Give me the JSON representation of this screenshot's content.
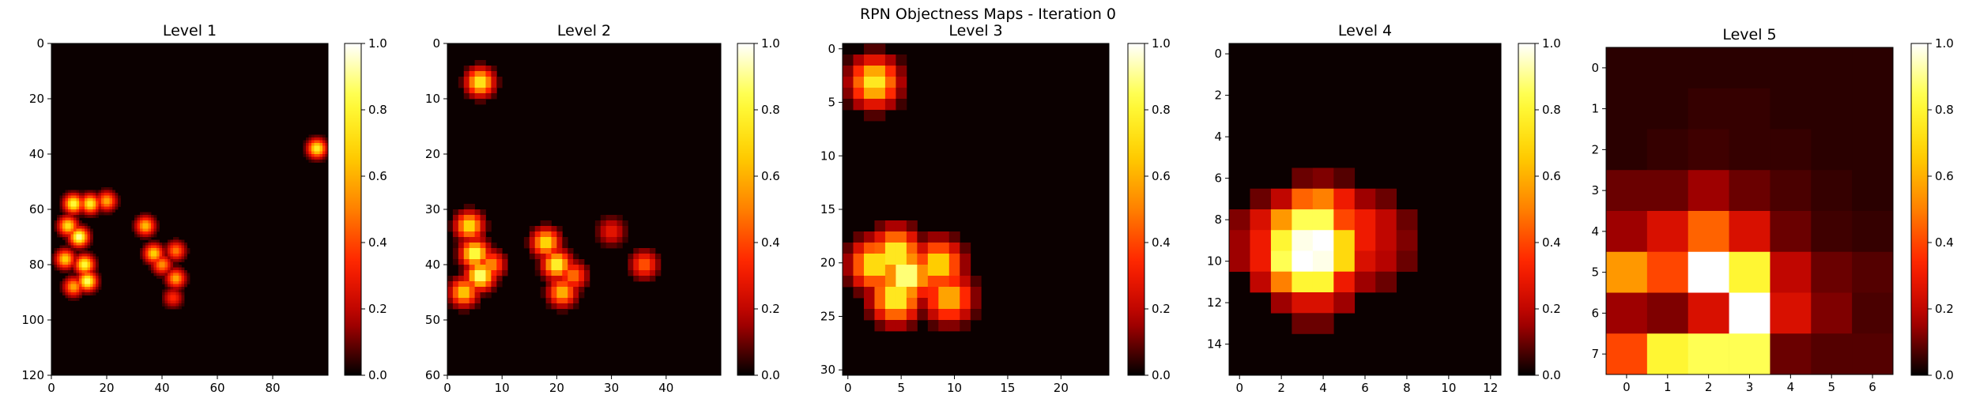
{
  "figure": {
    "suptitle": "RPN Objectness Maps - Iteration 0",
    "colormap": [
      "#000000",
      "#b00000",
      "#ff2000",
      "#ff8000",
      "#ffd000",
      "#ffff40",
      "#ffffff"
    ],
    "background_value_color": "#0b0000"
  },
  "chart_data": [
    {
      "type": "heatmap",
      "title": "Level 1",
      "grid_shape": [
        120,
        100
      ],
      "xticks": [
        0,
        20,
        40,
        60,
        80
      ],
      "yticks": [
        0,
        20,
        40,
        60,
        80,
        100,
        120
      ],
      "colorbar_ticks": [
        0.0,
        0.2,
        0.4,
        0.6,
        0.8,
        1.0
      ],
      "colorbar_tick_labels": [
        "0.0",
        "0.2",
        "0.4",
        "0.6",
        "0.8",
        "1.0"
      ],
      "vmin": 0.0,
      "vmax": 1.0,
      "hotspots": [
        {
          "x": 8,
          "y": 58,
          "value": 0.85
        },
        {
          "x": 14,
          "y": 58,
          "value": 0.8
        },
        {
          "x": 20,
          "y": 57,
          "value": 0.6
        },
        {
          "x": 6,
          "y": 66,
          "value": 0.75
        },
        {
          "x": 10,
          "y": 70,
          "value": 0.95
        },
        {
          "x": 5,
          "y": 78,
          "value": 0.7
        },
        {
          "x": 12,
          "y": 80,
          "value": 0.85
        },
        {
          "x": 13,
          "y": 86,
          "value": 0.9
        },
        {
          "x": 8,
          "y": 88,
          "value": 0.6
        },
        {
          "x": 34,
          "y": 66,
          "value": 0.65
        },
        {
          "x": 37,
          "y": 76,
          "value": 0.7
        },
        {
          "x": 40,
          "y": 80,
          "value": 0.55
        },
        {
          "x": 45,
          "y": 75,
          "value": 0.5
        },
        {
          "x": 45,
          "y": 85,
          "value": 0.6
        },
        {
          "x": 44,
          "y": 92,
          "value": 0.35
        },
        {
          "x": 96,
          "y": 38,
          "value": 0.8
        }
      ]
    },
    {
      "type": "heatmap",
      "title": "Level 2",
      "grid_shape": [
        60,
        50
      ],
      "xticks": [
        0,
        10,
        20,
        30,
        40
      ],
      "yticks": [
        0,
        10,
        20,
        30,
        40,
        50,
        60
      ],
      "colorbar_ticks": [
        0.0,
        0.2,
        0.4,
        0.6,
        0.8,
        1.0
      ],
      "colorbar_tick_labels": [
        "0.0",
        "0.2",
        "0.4",
        "0.6",
        "0.8",
        "1.0"
      ],
      "vmin": 0.0,
      "vmax": 1.0,
      "hotspots": [
        {
          "x": 6,
          "y": 7,
          "value": 0.8
        },
        {
          "x": 4,
          "y": 33,
          "value": 0.75
        },
        {
          "x": 5,
          "y": 38,
          "value": 0.9
        },
        {
          "x": 6,
          "y": 42,
          "value": 0.95
        },
        {
          "x": 3,
          "y": 45,
          "value": 0.7
        },
        {
          "x": 8,
          "y": 40,
          "value": 0.55
        },
        {
          "x": 18,
          "y": 36,
          "value": 0.75
        },
        {
          "x": 20,
          "y": 40,
          "value": 0.85
        },
        {
          "x": 21,
          "y": 45,
          "value": 0.65
        },
        {
          "x": 23,
          "y": 42,
          "value": 0.5
        },
        {
          "x": 30,
          "y": 34,
          "value": 0.3
        },
        {
          "x": 36,
          "y": 40,
          "value": 0.45
        }
      ]
    },
    {
      "type": "heatmap",
      "title": "Level 3",
      "grid_shape": [
        30,
        25
      ],
      "xticks": [
        0,
        5,
        10,
        15,
        20
      ],
      "yticks": [
        0,
        5,
        10,
        15,
        20,
        25,
        30
      ],
      "colorbar_ticks": [
        0.0,
        0.2,
        0.4,
        0.6,
        0.8,
        1.0
      ],
      "colorbar_tick_labels": [
        "0.0",
        "0.2",
        "0.4",
        "0.6",
        "0.8",
        "1.0"
      ],
      "vmin": 0.0,
      "vmax": 1.0,
      "hotspots": [
        {
          "x": 3,
          "y": 3.5,
          "value": 0.8
        },
        {
          "x": 5,
          "y": 19,
          "value": 0.85
        },
        {
          "x": 6,
          "y": 21,
          "value": 1.0
        },
        {
          "x": 5,
          "y": 23,
          "value": 0.85
        },
        {
          "x": 3,
          "y": 20,
          "value": 0.8
        },
        {
          "x": 9,
          "y": 20,
          "value": 0.75
        },
        {
          "x": 10,
          "y": 23,
          "value": 0.65
        }
      ]
    },
    {
      "type": "heatmap",
      "title": "Level 4",
      "grid_shape": [
        15,
        12
      ],
      "xticks": [
        0,
        2,
        4,
        6,
        8,
        10,
        12
      ],
      "yticks": [
        0,
        2,
        4,
        6,
        8,
        10,
        12,
        14
      ],
      "colorbar_ticks": [
        0.0,
        0.2,
        0.4,
        0.6,
        0.8,
        1.0
      ],
      "colorbar_tick_labels": [
        "0.0",
        "0.2",
        "0.4",
        "0.6",
        "0.8",
        "1.0"
      ],
      "vmin": 0.0,
      "vmax": 1.0,
      "cells": [
        [
          6,
          3,
          0.1
        ],
        [
          6,
          4,
          0.12
        ],
        [
          6,
          5,
          0.08
        ],
        [
          7,
          1,
          0.1
        ],
        [
          7,
          2,
          0.2
        ],
        [
          7,
          3,
          0.45
        ],
        [
          7,
          4,
          0.5
        ],
        [
          7,
          5,
          0.3
        ],
        [
          7,
          6,
          0.15
        ],
        [
          7,
          7,
          0.1
        ],
        [
          8,
          0,
          0.12
        ],
        [
          8,
          1,
          0.25
        ],
        [
          8,
          2,
          0.55
        ],
        [
          8,
          3,
          0.85
        ],
        [
          8,
          4,
          0.85
        ],
        [
          8,
          5,
          0.4
        ],
        [
          8,
          6,
          0.3
        ],
        [
          8,
          7,
          0.2
        ],
        [
          8,
          8,
          0.1
        ],
        [
          9,
          0,
          0.15
        ],
        [
          9,
          1,
          0.3
        ],
        [
          9,
          2,
          0.8
        ],
        [
          9,
          3,
          0.98
        ],
        [
          9,
          4,
          1.0
        ],
        [
          9,
          5,
          0.7
        ],
        [
          9,
          6,
          0.3
        ],
        [
          9,
          7,
          0.2
        ],
        [
          9,
          8,
          0.12
        ],
        [
          10,
          0,
          0.15
        ],
        [
          10,
          1,
          0.3
        ],
        [
          10,
          2,
          0.85
        ],
        [
          10,
          3,
          1.0
        ],
        [
          10,
          4,
          0.98
        ],
        [
          10,
          5,
          0.7
        ],
        [
          10,
          6,
          0.25
        ],
        [
          10,
          7,
          0.18
        ],
        [
          10,
          8,
          0.1
        ],
        [
          11,
          1,
          0.2
        ],
        [
          11,
          2,
          0.5
        ],
        [
          11,
          3,
          0.8
        ],
        [
          11,
          4,
          0.8
        ],
        [
          11,
          5,
          0.3
        ],
        [
          11,
          6,
          0.15
        ],
        [
          11,
          7,
          0.1
        ],
        [
          12,
          2,
          0.15
        ],
        [
          12,
          3,
          0.25
        ],
        [
          12,
          4,
          0.25
        ],
        [
          12,
          5,
          0.15
        ],
        [
          13,
          3,
          0.1
        ],
        [
          13,
          4,
          0.1
        ]
      ]
    },
    {
      "type": "heatmap",
      "title": "Level 5",
      "grid_shape": [
        8,
        7
      ],
      "xticks": [
        0,
        1,
        2,
        3,
        4,
        5,
        6
      ],
      "yticks": [
        0,
        1,
        2,
        3,
        4,
        5,
        6,
        7
      ],
      "colorbar_ticks": [
        0.0,
        0.2,
        0.4,
        0.6,
        0.8,
        1.0
      ],
      "colorbar_tick_labels": [
        "0.0",
        "0.2",
        "0.4",
        "0.6",
        "0.8",
        "1.0"
      ],
      "vmin": 0.0,
      "vmax": 1.0,
      "matrix": [
        [
          0.04,
          0.04,
          0.04,
          0.04,
          0.04,
          0.04,
          0.04
        ],
        [
          0.04,
          0.04,
          0.05,
          0.05,
          0.04,
          0.04,
          0.04
        ],
        [
          0.04,
          0.05,
          0.06,
          0.05,
          0.05,
          0.04,
          0.04
        ],
        [
          0.1,
          0.1,
          0.15,
          0.1,
          0.07,
          0.05,
          0.04
        ],
        [
          0.15,
          0.25,
          0.45,
          0.25,
          0.1,
          0.06,
          0.05
        ],
        [
          0.55,
          0.4,
          1.0,
          0.8,
          0.2,
          0.1,
          0.08
        ],
        [
          0.15,
          0.12,
          0.25,
          1.0,
          0.25,
          0.12,
          0.07
        ],
        [
          0.4,
          0.8,
          0.85,
          0.85,
          0.1,
          0.08,
          0.08
        ]
      ]
    }
  ]
}
